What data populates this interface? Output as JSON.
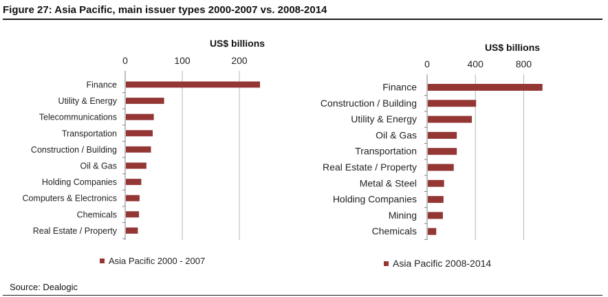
{
  "figure": {
    "title": "Figure 27: Asia Pacific, main issuer types 2000-2007 vs. 2008-2014",
    "source": "Source: Dealogic"
  },
  "colors": {
    "bar": "#943634",
    "grid": "#b5b5b5",
    "axis": "#7f7f7f"
  },
  "chart_data": [
    {
      "type": "bar",
      "orientation": "horizontal",
      "title": "",
      "unit_label": "US$ billions",
      "xlim": [
        0,
        240
      ],
      "ticks": [
        0,
        100,
        200
      ],
      "categories": [
        "Finance",
        "Utility & Energy",
        "Telecommunications",
        "Transportation",
        "Construction / Building",
        "Oil & Gas",
        "Holding Companies",
        "Computers & Electronics",
        "Chemicals",
        "Real Estate / Property"
      ],
      "series": [
        {
          "name": "Asia Pacific 2000 - 2007",
          "values": [
            235,
            67,
            49,
            47,
            44,
            36,
            27,
            24,
            23,
            21
          ]
        }
      ],
      "grid": true,
      "legend": "bottom"
    },
    {
      "type": "bar",
      "orientation": "horizontal",
      "title": "",
      "unit_label": "US$ billions",
      "xlim": [
        0,
        1000
      ],
      "ticks": [
        0,
        400,
        800
      ],
      "categories": [
        "Finance",
        "Construction / Building",
        "Utility & Energy",
        "Oil & Gas",
        "Transportation",
        "Real Estate / Property",
        "Metal & Steel",
        "Holding Companies",
        "Mining",
        "Chemicals"
      ],
      "series": [
        {
          "name": "Asia Pacific 2008-2014",
          "values": [
            950,
            400,
            365,
            240,
            240,
            215,
            135,
            130,
            125,
            70
          ]
        }
      ],
      "grid": true,
      "legend": "bottom"
    }
  ]
}
